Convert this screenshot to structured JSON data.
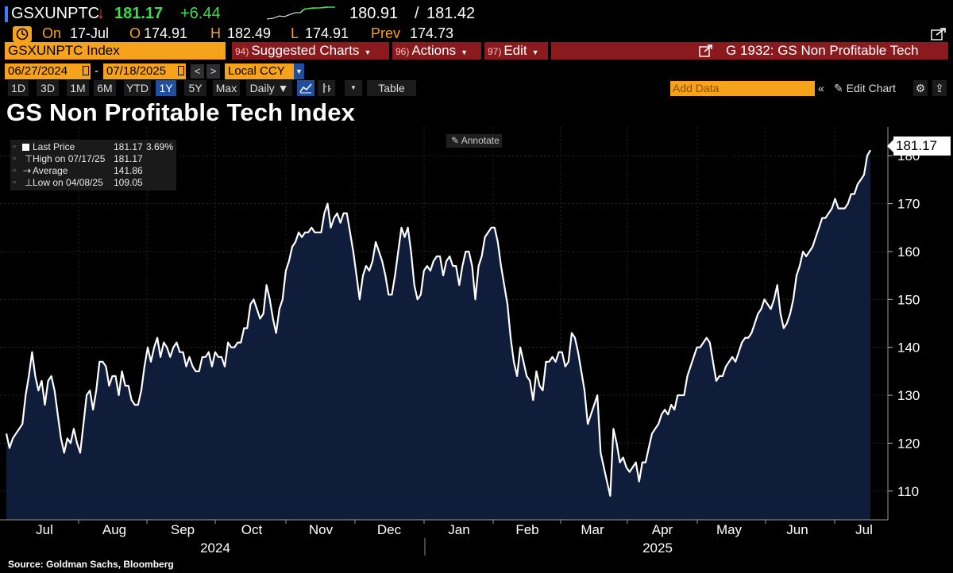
{
  "ticker": {
    "symbol": "GSXUNPTC",
    "arrow": "↓",
    "last": "181.17",
    "change": "+6.44",
    "bid": "180.91",
    "separator": "/",
    "ask": "181.42"
  },
  "ohlc": {
    "on_label": "On",
    "date": "17-Jul",
    "open_label": "O",
    "open": "174.91",
    "high_label": "H",
    "high": "182.49",
    "low_label": "L",
    "low": "174.91",
    "prev_label": "Prev",
    "prev": "174.73"
  },
  "security_bar": {
    "name": "GSXUNPTC Index",
    "buttons": [
      {
        "num": "94)",
        "label": "Suggested Charts"
      },
      {
        "num": "96)",
        "label": "Actions"
      },
      {
        "num": "97)",
        "label": "Edit"
      }
    ],
    "function_title": "G 1932: GS Non Profitable Tech"
  },
  "date_row": {
    "start": "06/27/2024",
    "dash": "-",
    "end": "07/18/2025",
    "prev_btn": "<",
    "next_btn": ">",
    "currency": "Local CCY"
  },
  "range_row": {
    "ranges": [
      "1D",
      "3D",
      "1M",
      "6M",
      "YTD",
      "1Y",
      "5Y",
      "Max"
    ],
    "active": "1Y",
    "period": "Daily ▼",
    "table_label": "Table",
    "add_data_placeholder": "Add Data",
    "collapse": "«",
    "edit_chart": "✎ Edit Chart"
  },
  "colors": {
    "accent": "#f7a21b",
    "red_bar": "#8a1a1d",
    "area_fill": "#0f1d3b",
    "line": "#ffffff",
    "active_range": "#1f4f9e"
  },
  "chart_data": {
    "type": "area",
    "title": "GS Non Profitable Tech Index",
    "ylim": [
      104,
      186
    ],
    "yticks": [
      110,
      120,
      130,
      140,
      150,
      160,
      170,
      180
    ],
    "x_month_labels": [
      "Jul",
      "Aug",
      "Sep",
      "Oct",
      "Nov",
      "Dec",
      "Jan",
      "Feb",
      "Mar",
      "Apr",
      "May",
      "Jun",
      "Jul"
    ],
    "year_labels": [
      "2024",
      "2025"
    ],
    "grid": true,
    "legend_position": "top-left",
    "legend": {
      "last_label": "Last Price",
      "last_value": "181.17",
      "last_pct": "3.69%",
      "high_label": "High on 07/17/25",
      "high_value": "181.17",
      "avg_label": "Average",
      "avg_value": "141.86",
      "low_label": "Low on 04/08/25",
      "low_value": "109.05"
    },
    "annotate_label": "Annotate",
    "last_price_label": "181.17",
    "series": [
      {
        "values": [
          122,
          119,
          121,
          122,
          123,
          124,
          130,
          134,
          139,
          134,
          131,
          133,
          128,
          133,
          134,
          131,
          126,
          121,
          118,
          121,
          120,
          123,
          120,
          118,
          124,
          130,
          131,
          127,
          131,
          137,
          137,
          136,
          132,
          134,
          134,
          130,
          135,
          132,
          132,
          129,
          128,
          128,
          131,
          136,
          140,
          137,
          140,
          142,
          138,
          141,
          140,
          138,
          140,
          141,
          139,
          139,
          136,
          138,
          136,
          135,
          135,
          138,
          138,
          139,
          136,
          139,
          138,
          138,
          136,
          141,
          140,
          140,
          141,
          141,
          144,
          144,
          149,
          150,
          148,
          146,
          147,
          153,
          150,
          146,
          143,
          148,
          150,
          156,
          158,
          161,
          162,
          164,
          163,
          164,
          164,
          165,
          164,
          164,
          164,
          168,
          170,
          165,
          167,
          168,
          166,
          168,
          168,
          164,
          160,
          155,
          150,
          155,
          157,
          156,
          158,
          162,
          160,
          158,
          155,
          151,
          151,
          155,
          160,
          165,
          163,
          165,
          160,
          153,
          150,
          151,
          156,
          157,
          156,
          158,
          159,
          159,
          155,
          158,
          159,
          157,
          157,
          153,
          157,
          160,
          160,
          157,
          150,
          157,
          159,
          163,
          164,
          165,
          165,
          162,
          157,
          153,
          149,
          142,
          137,
          134,
          140,
          137,
          134,
          133,
          129,
          135,
          132,
          131,
          137,
          137,
          138,
          137,
          139,
          139,
          136,
          137,
          143,
          142,
          139,
          135,
          131,
          124,
          126,
          128,
          130,
          118,
          115,
          112,
          109,
          123,
          120,
          116,
          117,
          115,
          114,
          115,
          116,
          112,
          116,
          116,
          119,
          122,
          123,
          124,
          126,
          127,
          126,
          128,
          127,
          130,
          130,
          130,
          134,
          136,
          138,
          140,
          140,
          141,
          142,
          141,
          137,
          133,
          134,
          134,
          136,
          137,
          138,
          137,
          139,
          141,
          142,
          142,
          143,
          145,
          147,
          148,
          150,
          149,
          148,
          150,
          153,
          147,
          144,
          145,
          147,
          150,
          155,
          157,
          160,
          159,
          160,
          161,
          163,
          165,
          167,
          167,
          168,
          169,
          171,
          169,
          169,
          169,
          170,
          172,
          172,
          174,
          175,
          176,
          180,
          181.17
        ]
      }
    ]
  },
  "source_note": "Source: Goldman Sachs, Bloomberg"
}
